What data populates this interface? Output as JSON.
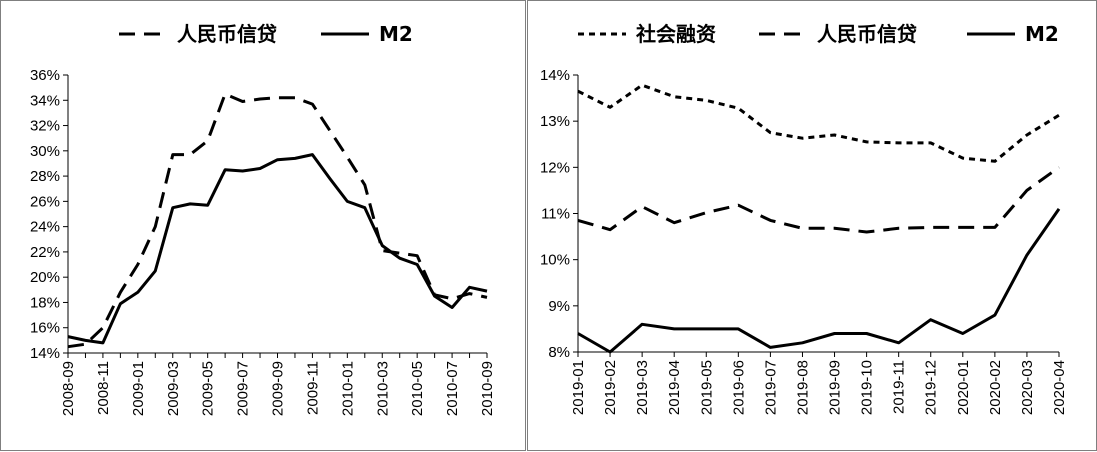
{
  "chart_data": [
    {
      "type": "line",
      "title": "",
      "xlabel": "",
      "ylabel": "",
      "ylim": [
        0.14,
        0.36
      ],
      "ytick_step": 0.02,
      "y_tick_decimals": 0,
      "grid": false,
      "legend": "top",
      "x": [
        "2008-09",
        "2008-10",
        "2008-11",
        "2008-12",
        "2009-01",
        "2009-02",
        "2009-03",
        "2009-04",
        "2009-05",
        "2009-06",
        "2009-07",
        "2009-08",
        "2009-09",
        "2009-10",
        "2009-11",
        "2009-12",
        "2010-01",
        "2010-02",
        "2010-03",
        "2010-04",
        "2010-05",
        "2010-06",
        "2010-07",
        "2010-08",
        "2010-09"
      ],
      "x_tick_labels": [
        "2008-09",
        "2008-11",
        "2009-01",
        "2009-03",
        "2009-05",
        "2009-07",
        "2009-09",
        "2009-11",
        "2010-01",
        "2010-03",
        "2010-05",
        "2010-07",
        "2010-09"
      ],
      "series": [
        {
          "name": "人民币信贷",
          "style": "dash",
          "values": [
            0.145,
            0.147,
            0.16,
            0.188,
            0.21,
            0.24,
            0.297,
            0.297,
            0.308,
            0.345,
            0.339,
            0.341,
            0.342,
            0.342,
            0.337,
            0.316,
            0.295,
            0.273,
            0.221,
            0.219,
            0.217,
            0.186,
            0.183,
            0.187,
            0.184
          ]
        },
        {
          "name": "M2",
          "style": "solid",
          "values": [
            0.153,
            0.15,
            0.148,
            0.179,
            0.188,
            0.205,
            0.255,
            0.258,
            0.257,
            0.285,
            0.284,
            0.286,
            0.293,
            0.294,
            0.297,
            0.278,
            0.26,
            0.255,
            0.225,
            0.215,
            0.21,
            0.185,
            0.176,
            0.192,
            0.189
          ]
        }
      ]
    },
    {
      "type": "line",
      "title": "",
      "xlabel": "",
      "ylabel": "",
      "ylim": [
        0.08,
        0.14
      ],
      "ytick_step": 0.01,
      "y_tick_decimals": 0,
      "grid": false,
      "legend": "top",
      "x": [
        "2019-01",
        "2019-02",
        "2019-03",
        "2019-04",
        "2019-05",
        "2019-06",
        "2019-07",
        "2019-08",
        "2019-09",
        "2019-10",
        "2019-11",
        "2019-12",
        "2020-01",
        "2020-02",
        "2020-03",
        "2020-04"
      ],
      "x_tick_labels": [
        "2019-01",
        "2019-02",
        "2019-03",
        "2019-04",
        "2019-05",
        "2019-06",
        "2019-07",
        "2019-08",
        "2019-09",
        "2019-10",
        "2019-11",
        "2019-12",
        "2020-01",
        "2020-02",
        "2020-03",
        "2020-04"
      ],
      "series": [
        {
          "name": "社会融资",
          "style": "dot",
          "values": [
            0.1365,
            0.133,
            0.1378,
            0.1353,
            0.1345,
            0.1328,
            0.1275,
            0.1263,
            0.127,
            0.1255,
            0.1253,
            0.1253,
            0.122,
            0.1213,
            0.127,
            0.1313
          ]
        },
        {
          "name": "人民币信贷",
          "style": "dash",
          "values": [
            0.1085,
            0.1065,
            0.1115,
            0.108,
            0.1102,
            0.1118,
            0.1085,
            0.1068,
            0.1068,
            0.106,
            0.1068,
            0.107,
            0.107,
            0.107,
            0.115,
            0.12
          ]
        },
        {
          "name": "M2",
          "style": "solid",
          "values": [
            0.084,
            0.08,
            0.086,
            0.085,
            0.085,
            0.085,
            0.081,
            0.082,
            0.084,
            0.084,
            0.082,
            0.087,
            0.084,
            0.088,
            0.101,
            0.111
          ]
        }
      ]
    }
  ]
}
